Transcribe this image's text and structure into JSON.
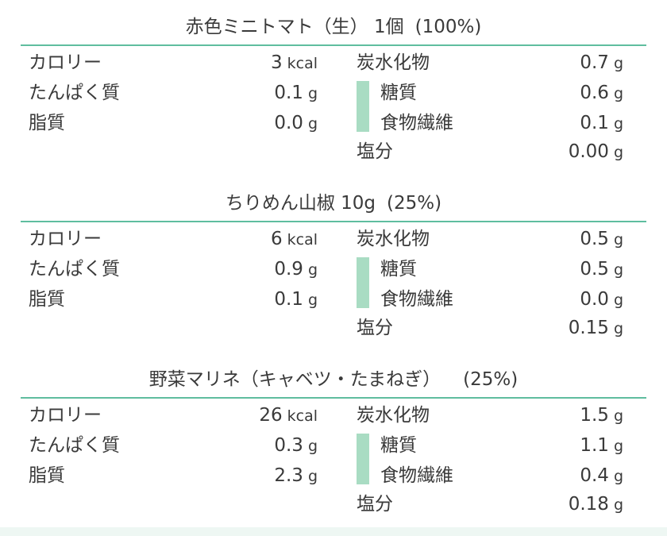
{
  "sections": [
    {
      "title": "赤色ミニトマト（生） 1個",
      "percent": "(100%)",
      "calorie_label": "カロリー",
      "calorie_value": "3",
      "calorie_unit": "kcal",
      "protein_label": "たんぱく質",
      "protein_value": "0.1",
      "protein_unit": "g",
      "fat_label": "脂質",
      "fat_value": "0.0",
      "fat_unit": "g",
      "carb_label": "炭水化物",
      "carb_value": "0.7",
      "carb_unit": "g",
      "sugar_label": "糖質",
      "sugar_value": "0.6",
      "sugar_unit": "g",
      "fiber_label": "食物繊維",
      "fiber_value": "0.1",
      "fiber_unit": "g",
      "salt_label": "塩分",
      "salt_value": "0.00",
      "salt_unit": "g"
    },
    {
      "title": "ちりめん山椒 10g",
      "percent": "(25%)",
      "calorie_label": "カロリー",
      "calorie_value": "6",
      "calorie_unit": "kcal",
      "protein_label": "たんぱく質",
      "protein_value": "0.9",
      "protein_unit": "g",
      "fat_label": "脂質",
      "fat_value": "0.1",
      "fat_unit": "g",
      "carb_label": "炭水化物",
      "carb_value": "0.5",
      "carb_unit": "g",
      "sugar_label": "糖質",
      "sugar_value": "0.5",
      "sugar_unit": "g",
      "fiber_label": "食物繊維",
      "fiber_value": "0.0",
      "fiber_unit": "g",
      "salt_label": "塩分",
      "salt_value": "0.15",
      "salt_unit": "g"
    },
    {
      "title": "野菜マリネ（キャベツ・たまねぎ）",
      "percent": "(25%)",
      "calorie_label": "カロリー",
      "calorie_value": "26",
      "calorie_unit": "kcal",
      "protein_label": "たんぱく質",
      "protein_value": "0.3",
      "protein_unit": "g",
      "fat_label": "脂質",
      "fat_value": "2.3",
      "fat_unit": "g",
      "carb_label": "炭水化物",
      "carb_value": "1.5",
      "carb_unit": "g",
      "sugar_label": "糖質",
      "sugar_value": "1.1",
      "sugar_unit": "g",
      "fiber_label": "食物繊維",
      "fiber_value": "0.4",
      "fiber_unit": "g",
      "salt_label": "塩分",
      "salt_value": "0.18",
      "salt_unit": "g"
    }
  ],
  "colors": {
    "rule": "#5fbd9f",
    "bar": "#a9dcc3",
    "text": "#3a3a3a"
  }
}
